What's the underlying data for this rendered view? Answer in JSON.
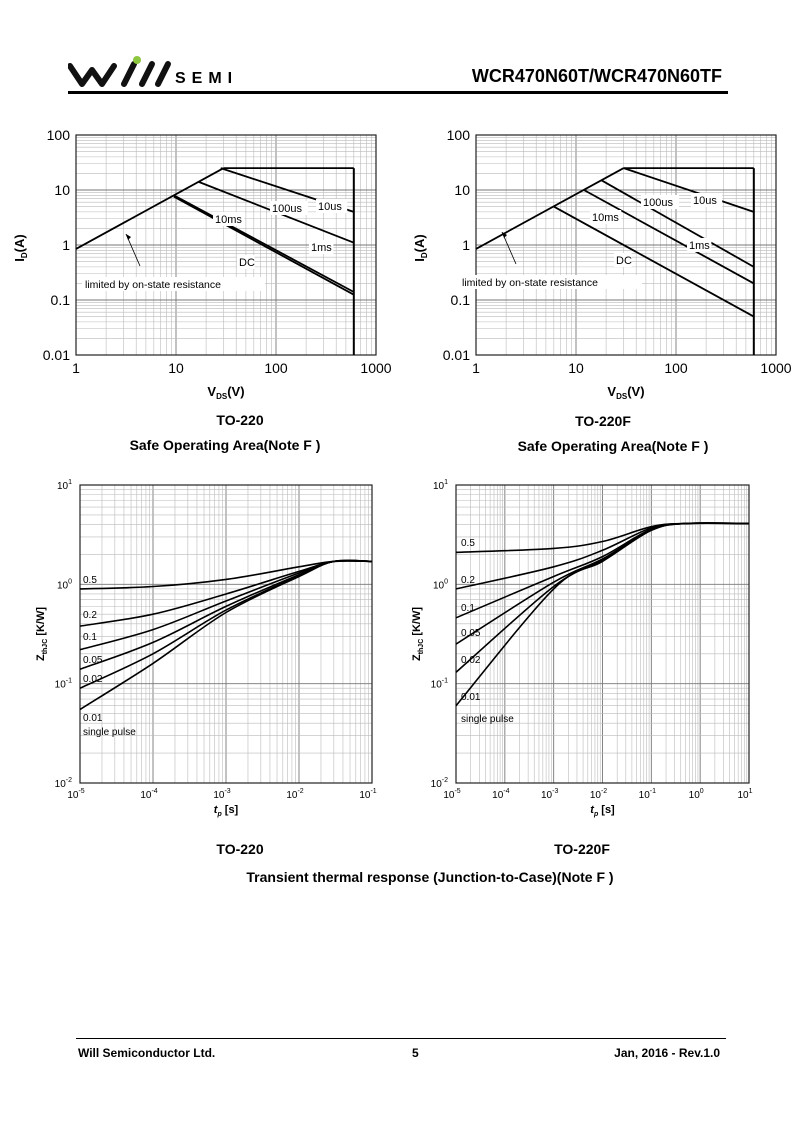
{
  "header": {
    "brand_text": "SEMI",
    "part_number": "WCR470N60T/WCR470N60TF"
  },
  "soa": {
    "caption": "Safe Operating Area(Note F )",
    "ylabel_main": "I",
    "ylabel_sub": "D",
    "ylabel_tail": "(A)",
    "xlabel_main": "V",
    "xlabel_sub": "DS",
    "xlabel_tail": "(V)",
    "y_ticks": [
      "100",
      "10",
      "1",
      "0.1",
      "0.01"
    ],
    "x_ticks": [
      "1",
      "10",
      "100",
      "1000"
    ],
    "limit_note": "limited by on-state resistance",
    "left": {
      "package": "TO-220",
      "labels": [
        "10us",
        "100us",
        "1ms",
        "10ms",
        "DC"
      ]
    },
    "right": {
      "package": "TO-220F",
      "labels": [
        "10us",
        "100us",
        "1ms",
        "10ms",
        "DC"
      ]
    }
  },
  "zth": {
    "caption": "Transient thermal response (Junction-to-Case)(Note F )",
    "ylabel": "Z",
    "ylabel_sub": "thJC",
    "ylabel_tail": " [K/W]",
    "xlabel": "t",
    "xlabel_sub": "p",
    "xlabel_tail": " [s]",
    "left": {
      "package": "TO-220",
      "curve_labels": [
        "0.5",
        "0.2",
        "0.1",
        "0.05",
        "0.02",
        "0.01",
        "single pulse"
      ]
    },
    "right": {
      "package": "TO-220F",
      "curve_labels": [
        "0.5",
        "0.2",
        "0.1",
        "0.05",
        "0.02",
        "0.01",
        "single pulse"
      ]
    }
  },
  "footer": {
    "company": "Will Semiconductor Ltd.",
    "page": "5",
    "date_rev": "Jan, 2016 - Rev.1.0"
  },
  "chart_data": [
    {
      "type": "line",
      "title": "",
      "xlabel": "VDS(V)",
      "ylabel": "ID(A)",
      "xscale": "log",
      "yscale": "log",
      "xlim": [
        1,
        1000
      ],
      "ylim": [
        0.01,
        100
      ],
      "grid": true,
      "series": [
        {
          "name": "10us",
          "x": [
            30,
            600
          ],
          "y": [
            25,
            25
          ]
        },
        {
          "name": "100us",
          "x": [
            28,
            600
          ],
          "y": [
            25,
            4
          ]
        },
        {
          "name": "1ms",
          "x": [
            17,
            600
          ],
          "y": [
            14,
            1.1
          ]
        },
        {
          "name": "10ms",
          "x": [
            9.5,
            600
          ],
          "y": [
            8,
            0.14
          ]
        },
        {
          "name": "DC",
          "x": [
            9.5,
            600
          ],
          "y": [
            7.6,
            0.125
          ]
        },
        {
          "name": "limited by on-state resistance",
          "x": [
            1,
            30
          ],
          "y": [
            0.85,
            25
          ]
        }
      ]
    },
    {
      "type": "line",
      "title": "",
      "xlabel": "VDS(V)",
      "ylabel": "ID(A)",
      "xscale": "log",
      "yscale": "log",
      "xlim": [
        1,
        1000
      ],
      "ylim": [
        0.01,
        100
      ],
      "grid": true,
      "series": [
        {
          "name": "10us",
          "x": [
            30,
            600
          ],
          "y": [
            25,
            25
          ]
        },
        {
          "name": "100us",
          "x": [
            30,
            600
          ],
          "y": [
            25,
            4
          ]
        },
        {
          "name": "1ms",
          "x": [
            18,
            600
          ],
          "y": [
            15,
            0.4
          ]
        },
        {
          "name": "10ms",
          "x": [
            12,
            600
          ],
          "y": [
            10,
            0.2
          ]
        },
        {
          "name": "DC",
          "x": [
            6,
            600
          ],
          "y": [
            5,
            0.05
          ]
        },
        {
          "name": "limited by on-state resistance",
          "x": [
            1,
            30
          ],
          "y": [
            0.85,
            25
          ]
        }
      ]
    },
    {
      "type": "line",
      "title": "",
      "xlabel": "tp [s]",
      "ylabel": "ZthJC [K/W]",
      "xscale": "log",
      "yscale": "log",
      "xlim": [
        1e-05,
        0.1
      ],
      "ylim": [
        0.01,
        10
      ],
      "grid": true,
      "series": [
        {
          "name": "0.5",
          "x": [
            1e-05,
            0.0001,
            0.001,
            0.01,
            0.03,
            0.1
          ],
          "y": [
            0.9,
            0.95,
            1.12,
            1.5,
            1.7,
            1.7
          ]
        },
        {
          "name": "0.2",
          "x": [
            1e-05,
            0.0001,
            0.001,
            0.01,
            0.03,
            0.1
          ],
          "y": [
            0.38,
            0.5,
            0.8,
            1.35,
            1.7,
            1.7
          ]
        },
        {
          "name": "0.1",
          "x": [
            1e-05,
            0.0001,
            0.001,
            0.01,
            0.03,
            0.1
          ],
          "y": [
            0.22,
            0.35,
            0.68,
            1.3,
            1.7,
            1.7
          ]
        },
        {
          "name": "0.05",
          "x": [
            1e-05,
            0.0001,
            0.001,
            0.01,
            0.03,
            0.1
          ],
          "y": [
            0.14,
            0.26,
            0.6,
            1.25,
            1.7,
            1.7
          ]
        },
        {
          "name": "0.02",
          "x": [
            1e-05,
            0.0001,
            0.001,
            0.01,
            0.03,
            0.1
          ],
          "y": [
            0.09,
            0.2,
            0.55,
            1.22,
            1.7,
            1.7
          ]
        },
        {
          "name": "0.01",
          "x": [
            1e-05,
            0.0001,
            0.001,
            0.01,
            0.03,
            0.1
          ],
          "y": [
            0.055,
            0.16,
            0.52,
            1.2,
            1.7,
            1.7
          ]
        }
      ]
    },
    {
      "type": "line",
      "title": "",
      "xlabel": "tp [s]",
      "ylabel": "ZthJC [K/W]",
      "xscale": "log",
      "yscale": "log",
      "xlim": [
        1e-05,
        10
      ],
      "ylim": [
        0.01,
        10
      ],
      "grid": true,
      "series": [
        {
          "name": "0.5",
          "x": [
            1e-05,
            0.001,
            0.01,
            0.1,
            0.5,
            10
          ],
          "y": [
            2.1,
            2.3,
            2.7,
            3.8,
            4.1,
            4.1
          ]
        },
        {
          "name": "0.2",
          "x": [
            1e-05,
            0.001,
            0.01,
            0.1,
            0.5,
            10
          ],
          "y": [
            0.9,
            1.5,
            2.2,
            3.7,
            4.1,
            4.1
          ]
        },
        {
          "name": "0.1",
          "x": [
            1e-05,
            0.001,
            0.01,
            0.1,
            0.5,
            10
          ],
          "y": [
            0.46,
            1.2,
            1.9,
            3.6,
            4.1,
            4.1
          ]
        },
        {
          "name": "0.05",
          "x": [
            1e-05,
            0.001,
            0.01,
            0.1,
            0.5,
            10
          ],
          "y": [
            0.25,
            1.05,
            1.8,
            3.55,
            4.1,
            4.1
          ]
        },
        {
          "name": "0.02",
          "x": [
            1e-05,
            0.001,
            0.01,
            0.1,
            0.5,
            10
          ],
          "y": [
            0.13,
            0.95,
            1.75,
            3.5,
            4.1,
            4.1
          ]
        },
        {
          "name": "0.01",
          "x": [
            1e-05,
            0.001,
            0.01,
            0.1,
            0.5,
            10
          ],
          "y": [
            0.06,
            0.9,
            1.7,
            3.5,
            4.1,
            4.1
          ]
        }
      ]
    }
  ]
}
